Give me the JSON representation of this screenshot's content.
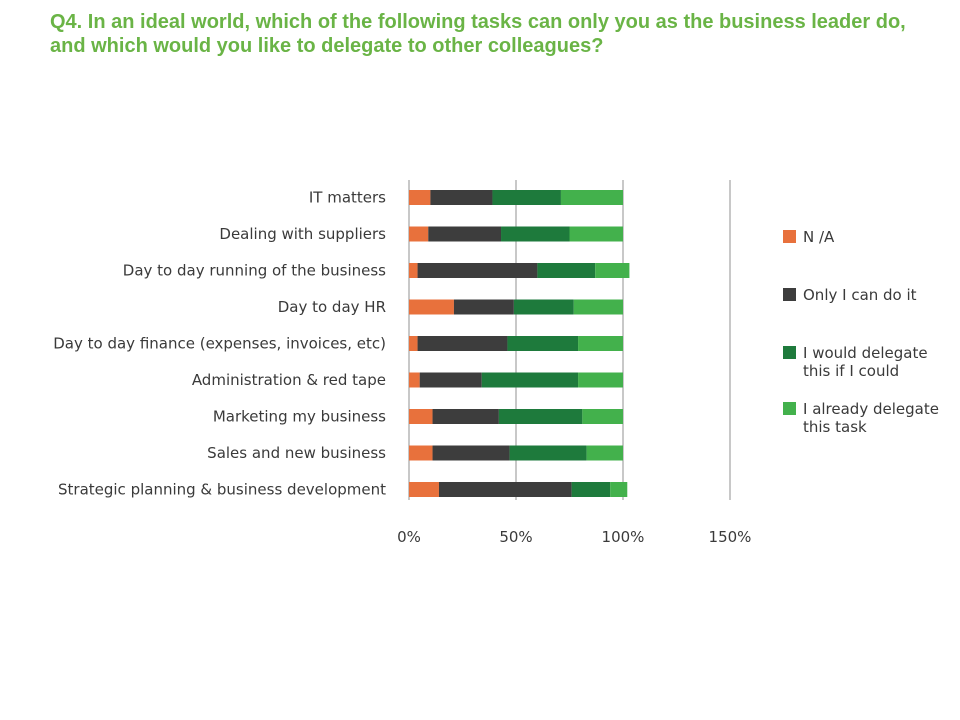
{
  "question": {
    "text": "Q4. In an ideal world, which of the following tasks can only you as the business leader do, and which would you like to delegate to other colleagues?"
  },
  "chart_data": {
    "type": "bar",
    "orientation": "horizontal",
    "stacked": true,
    "title": "",
    "xlabel": "",
    "ylabel": "",
    "xlim": [
      0,
      150
    ],
    "ticks": [
      "0%",
      "50%",
      "100%",
      "150%"
    ],
    "tick_values": [
      0,
      50,
      100,
      150
    ],
    "grid": true,
    "legend_position": "right",
    "categories": [
      "IT matters",
      "Dealing with suppliers",
      "Day to day running of the business",
      "Day to day HR",
      "Day to day finance (expenses, invoices, etc)",
      "Administration & red tape",
      "Marketing my business",
      "Sales and new business",
      "Strategic planning & business development"
    ],
    "series": [
      {
        "name": "N /A",
        "color": "#e8713c",
        "values": [
          10,
          9,
          4,
          21,
          4,
          5,
          11,
          11,
          14
        ]
      },
      {
        "name": "Only I can do it",
        "color": "#3d3d3d",
        "values": [
          29,
          34,
          56,
          28,
          42,
          29,
          31,
          36,
          62
        ]
      },
      {
        "name": "I would delegate this if I could",
        "color": "#1e7a3c",
        "values": [
          32,
          32,
          27,
          28,
          33,
          45,
          39,
          36,
          18
        ]
      },
      {
        "name": "I already delegate this task",
        "color": "#43b14c",
        "values": [
          29,
          25,
          16,
          23,
          21,
          21,
          19,
          17,
          8
        ]
      }
    ],
    "legend_display": [
      [
        "N /A"
      ],
      [
        "Only I can do it"
      ],
      [
        "I would delegate",
        "this if I could"
      ],
      [
        "I already delegate",
        "this task"
      ]
    ]
  }
}
